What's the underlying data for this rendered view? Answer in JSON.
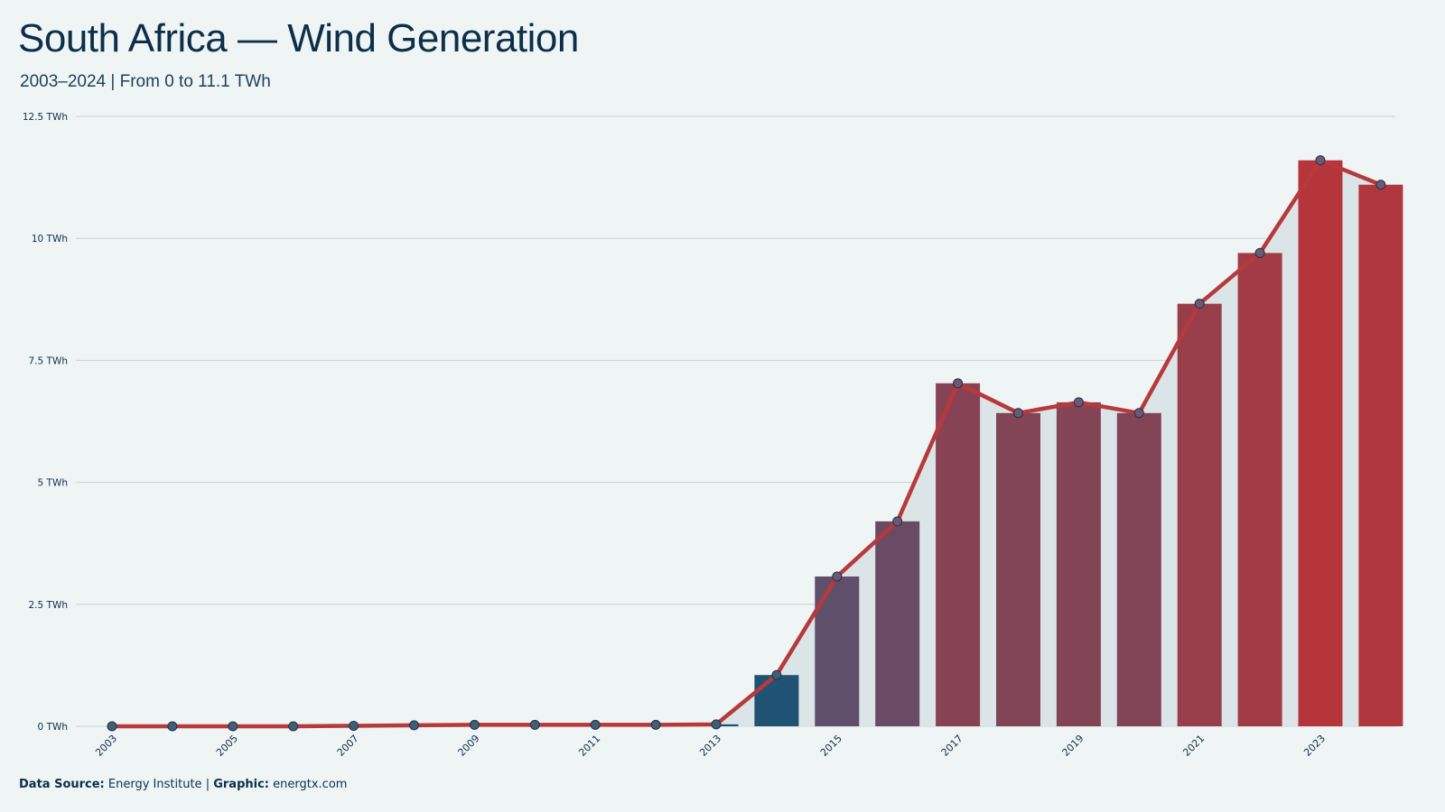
{
  "title": "South Africa — Wind Generation",
  "subtitle": "2003–2024 | From 0 to 11.1 TWh",
  "footer": {
    "source_label": "Data Source:",
    "source_value": "Energy Institute",
    "separator": "|",
    "graphic_label": "Graphic:",
    "graphic_value": "energtx.com"
  },
  "colors": {
    "background": "#eff5f5",
    "line": "#b8393c",
    "area": "#dbe5e8",
    "bar_low": "#1f5273",
    "bar_high": "#b5353a",
    "marker_fill": "#6a5a75",
    "grid": "#c8d2d6",
    "text": "#0d2f4a"
  },
  "chart_data": {
    "type": "bar",
    "x": [
      2003,
      2004,
      2005,
      2006,
      2007,
      2008,
      2009,
      2010,
      2011,
      2012,
      2013,
      2014,
      2015,
      2016,
      2017,
      2018,
      2019,
      2020,
      2021,
      2022,
      2023,
      2024
    ],
    "series": [
      {
        "values": [
          0,
          0,
          0,
          0,
          0.01,
          0.02,
          0.03,
          0.03,
          0.03,
          0.03,
          0.04,
          1.05,
          3.07,
          4.2,
          7.03,
          6.42,
          6.64,
          6.42,
          8.66,
          9.7,
          11.6,
          11.1
        ]
      }
    ],
    "overlay": "line-with-markers-and-area",
    "y_ticks": [
      {
        "value": 0,
        "label": "0 TWh"
      },
      {
        "value": 2.5,
        "label": "2.5 TWh"
      },
      {
        "value": 5,
        "label": "5 TWh"
      },
      {
        "value": 7.5,
        "label": "7.5 TWh"
      },
      {
        "value": 10,
        "label": "10 TWh"
      },
      {
        "value": 12.5,
        "label": "12.5 TWh"
      }
    ],
    "x_tick_labels": [
      "2003",
      "2005",
      "2007",
      "2009",
      "2011",
      "2013",
      "2015",
      "2017",
      "2019",
      "2021",
      "2023"
    ],
    "ylim": [
      0,
      12.5
    ],
    "grid": true,
    "legend": "none"
  }
}
